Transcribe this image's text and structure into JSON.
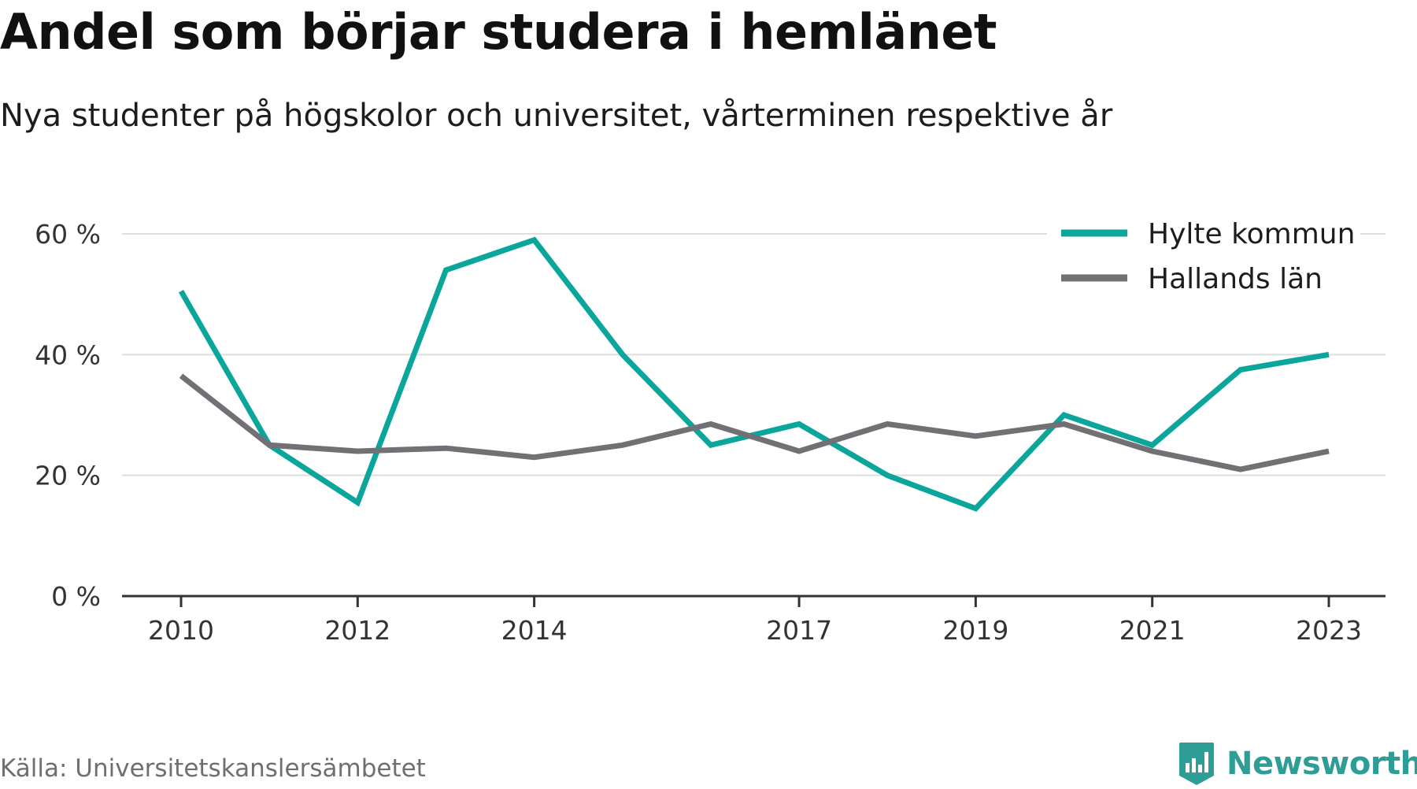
{
  "title": "Andel som börjar studera i hemlänet",
  "subtitle": "Nya studenter på högskolor och universitet, vårterminen respektive år",
  "source": "Källa: Universitetskanslersämbetet",
  "brand": "Newsworthy",
  "colors": {
    "hylte": "#0aa59b",
    "halland": "#727075",
    "grid": "#dedede",
    "axis": "#333333",
    "brand": "#2e9d95"
  },
  "chart_data": {
    "type": "line",
    "x": [
      2010,
      2011,
      2012,
      2013,
      2014,
      2015,
      2016,
      2017,
      2018,
      2019,
      2020,
      2021,
      2022,
      2023
    ],
    "xticks": [
      2010,
      2012,
      2014,
      2017,
      2019,
      2021,
      2023
    ],
    "xtick_labels": [
      "2010",
      "2012",
      "2014",
      "2017",
      "2019",
      "2021",
      "2023"
    ],
    "xlim": [
      2010,
      2023
    ],
    "yticks": [
      0,
      20,
      40,
      60
    ],
    "ytick_labels": [
      "0 %",
      "20 %",
      "40 %",
      "60 %"
    ],
    "ylim": [
      0,
      60
    ],
    "grid": true,
    "legend_position": "top-right",
    "series": [
      {
        "name": "Hylte kommun",
        "color": "#0aa59b",
        "values": [
          50.5,
          25.0,
          15.5,
          54.0,
          59.0,
          40.0,
          25.0,
          28.5,
          20.0,
          14.5,
          30.0,
          25.0,
          37.5,
          40.0
        ]
      },
      {
        "name": "Hallands län",
        "color": "#727075",
        "values": [
          36.5,
          25.0,
          24.0,
          24.5,
          23.0,
          25.0,
          28.5,
          24.0,
          28.5,
          26.5,
          28.5,
          24.0,
          21.0,
          24.0
        ]
      }
    ]
  }
}
